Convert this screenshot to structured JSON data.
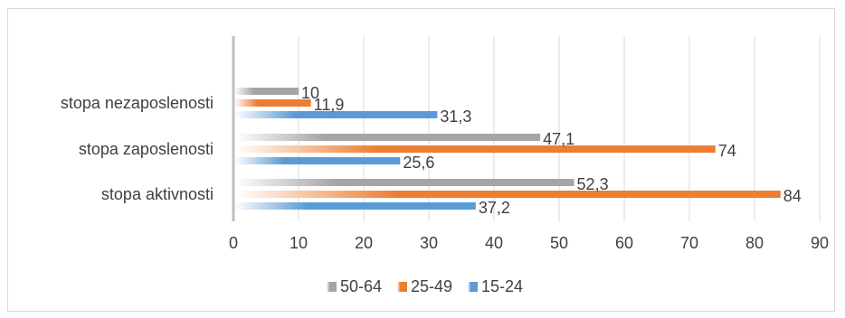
{
  "chart_data": {
    "type": "bar",
    "orientation": "horizontal",
    "categories": [
      "stopa aktivnosti",
      "stopa zaposlenosti",
      "stopa nezaposlenosti"
    ],
    "series": [
      {
        "name": "50-64",
        "color": "#a5a5a5",
        "values": [
          52.3,
          47.1,
          10
        ]
      },
      {
        "name": "25-49",
        "color": "#ed7d31",
        "values": [
          84,
          74,
          11.9
        ]
      },
      {
        "name": "15-24",
        "color": "#5b9bd5",
        "values": [
          37.2,
          25.6,
          31.3
        ]
      }
    ],
    "value_labels": [
      [
        "52,3",
        "47,1",
        "10"
      ],
      [
        "84",
        "74",
        "11,9"
      ],
      [
        "37,2",
        "25,6",
        "31,3"
      ]
    ],
    "x_ticks": [
      "0",
      "10",
      "20",
      "30",
      "40",
      "50",
      "60",
      "70",
      "80",
      "90"
    ],
    "xlim": [
      0,
      90
    ],
    "title": "",
    "xlabel": "",
    "ylabel": "",
    "grid": "vertical",
    "legend_position": "bottom"
  }
}
